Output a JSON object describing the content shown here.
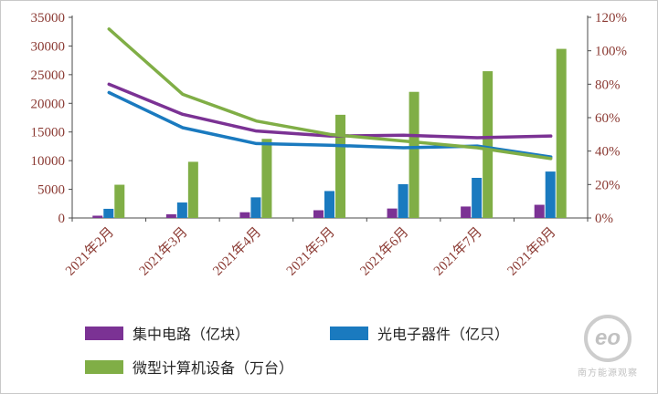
{
  "watermark": {
    "logo": "eo",
    "text": "南方能源观察"
  },
  "chart_data": {
    "type": "bar",
    "subtype": "combo-bar-line",
    "title": "",
    "categories": [
      "2021年2月",
      "2021年3月",
      "2021年4月",
      "2021年5月",
      "2021年6月",
      "2021年7月",
      "2021年8月"
    ],
    "left_axis": {
      "min": 0,
      "max": 35000,
      "step": 5000,
      "tick_labels": [
        "0",
        "5000",
        "10000",
        "15000",
        "20000",
        "25000",
        "30000",
        "35000"
      ]
    },
    "right_axis": {
      "min": 0,
      "max": 120,
      "step": 20,
      "tick_labels": [
        "0%",
        "20%",
        "40%",
        "60%",
        "80%",
        "100%",
        "120%"
      ]
    },
    "grid": false,
    "legend_position": "bottom",
    "series": [
      {
        "name": "集中电路（亿块）",
        "color": "#7b3294",
        "bar_values": [
          400,
          650,
          1000,
          1350,
          1650,
          2000,
          2300
        ],
        "line_values_pct": [
          80,
          62,
          52,
          49,
          49.5,
          48,
          49
        ]
      },
      {
        "name": "光电子器件（亿只）",
        "color": "#1a7abf",
        "bar_values": [
          1600,
          2700,
          3600,
          4700,
          5900,
          7000,
          8100
        ],
        "line_values_pct": [
          75,
          54,
          44.5,
          43.5,
          42,
          43,
          36.5
        ]
      },
      {
        "name": "微型计算机设备（万台）",
        "color": "#80ae46",
        "bar_values": [
          5800,
          9800,
          13800,
          18000,
          22000,
          25600,
          29500
        ],
        "line_values_pct": [
          113,
          74,
          58,
          50,
          46,
          42,
          35.5
        ]
      }
    ]
  }
}
